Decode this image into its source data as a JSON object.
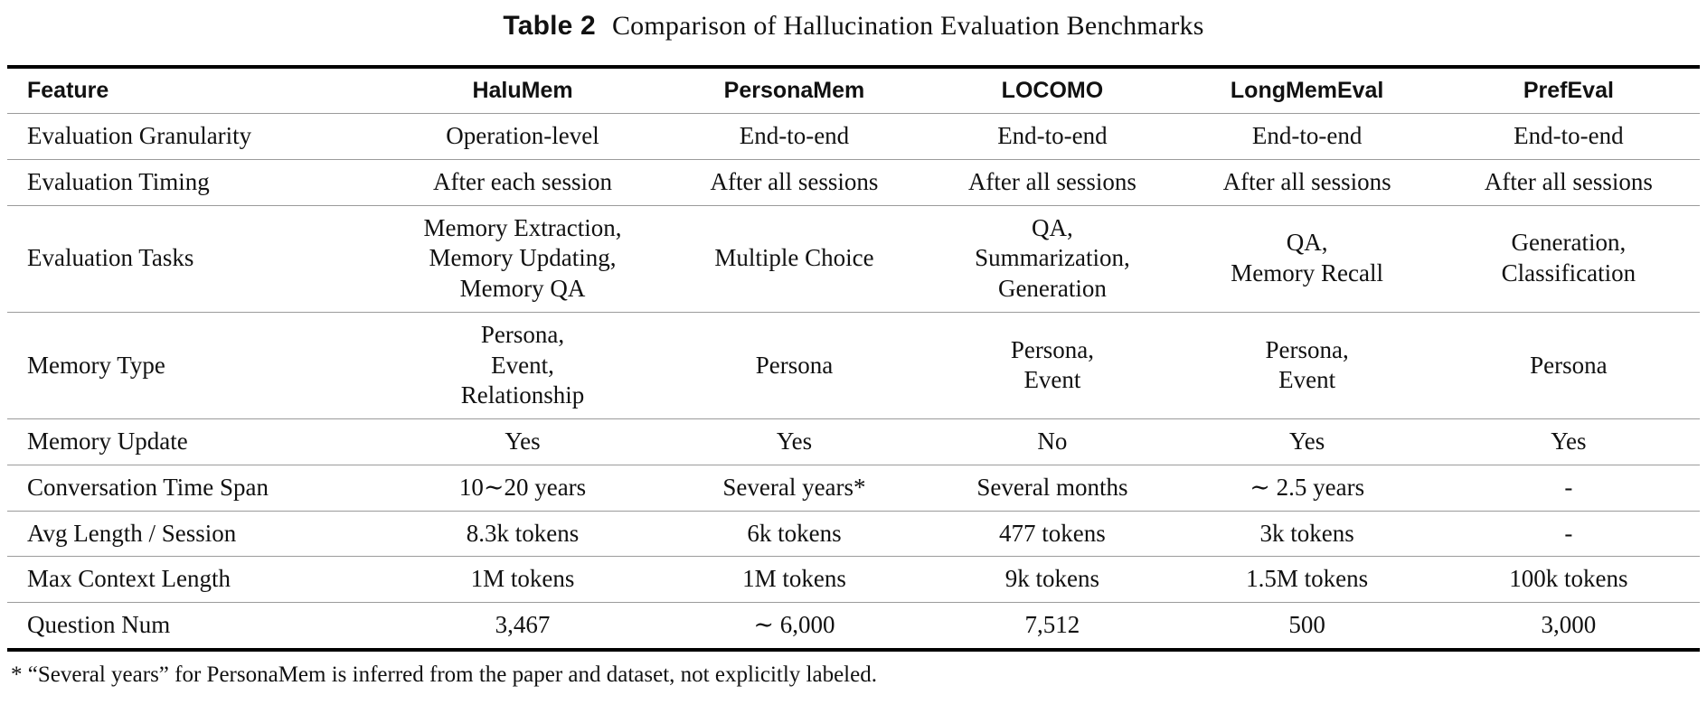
{
  "caption": {
    "label": "Table 2",
    "text": "Comparison of Hallucination Evaluation Benchmarks"
  },
  "table": {
    "columns": [
      "Feature",
      "HaluMem",
      "PersonaMem",
      "LOCOMO",
      "LongMemEval",
      "PrefEval"
    ],
    "rows": [
      {
        "feature": "Evaluation Granularity",
        "values": [
          "Operation-level",
          "End-to-end",
          "End-to-end",
          "End-to-end",
          "End-to-end"
        ]
      },
      {
        "feature": "Evaluation Timing",
        "values": [
          "After each session",
          "After all sessions",
          "After all sessions",
          "After all sessions",
          "After all sessions"
        ]
      },
      {
        "feature": "Evaluation Tasks",
        "values": [
          "Memory Extraction,\nMemory Updating,\nMemory QA",
          "Multiple Choice",
          "QA,\nSummarization,\nGeneration",
          "QA,\nMemory Recall",
          "Generation,\nClassification"
        ]
      },
      {
        "feature": "Memory Type",
        "values": [
          "Persona,\nEvent,\nRelationship",
          "Persona",
          "Persona,\nEvent",
          "Persona,\nEvent",
          "Persona"
        ]
      },
      {
        "feature": "Memory Update",
        "values": [
          "Yes",
          "Yes",
          "No",
          "Yes",
          "Yes"
        ]
      },
      {
        "feature": "Conversation Time Span",
        "values": [
          "10∼20 years",
          "Several years*",
          "Several months",
          "∼ 2.5 years",
          "-"
        ]
      },
      {
        "feature": "Avg Length / Session",
        "values": [
          "8.3k tokens",
          "6k tokens",
          "477 tokens",
          "3k tokens",
          "-"
        ]
      },
      {
        "feature": "Max Context Length",
        "values": [
          "1M tokens",
          "1M tokens",
          "9k tokens",
          "1.5M tokens",
          "100k tokens"
        ]
      },
      {
        "feature": "Question Num",
        "values": [
          "3,467",
          "∼ 6,000",
          "7,512",
          "500",
          "3,000"
        ]
      }
    ],
    "column_widths_pct": [
      22.3,
      16.3,
      15.8,
      14.7,
      15.4,
      15.5
    ]
  },
  "footnote": "* “Several years” for PersonaMem is inferred from the paper and dataset, not explicitly labeled."
}
